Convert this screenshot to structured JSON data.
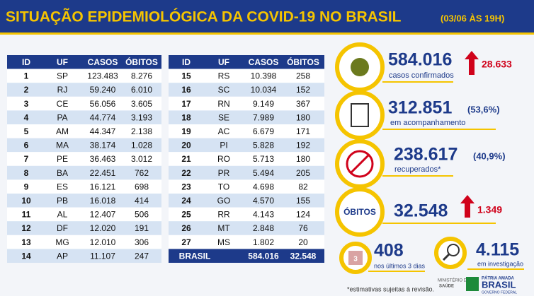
{
  "header": {
    "title": "SITUAÇÃO EPIDEMIOLÓGICA DA COVID-19 NO BRASIL",
    "date": "(03/06 ÀS 19H)"
  },
  "table_left": {
    "columns": [
      "ID",
      "UF",
      "CASOS",
      "ÓBITOS"
    ],
    "rows": [
      [
        "1",
        "SP",
        "123.483",
        "8.276"
      ],
      [
        "2",
        "RJ",
        "59.240",
        "6.010"
      ],
      [
        "3",
        "CE",
        "56.056",
        "3.605"
      ],
      [
        "4",
        "PA",
        "44.774",
        "3.193"
      ],
      [
        "5",
        "AM",
        "44.347",
        "2.138"
      ],
      [
        "6",
        "MA",
        "38.174",
        "1.028"
      ],
      [
        "7",
        "PE",
        "36.463",
        "3.012"
      ],
      [
        "8",
        "BA",
        "22.451",
        "762"
      ],
      [
        "9",
        "ES",
        "16.121",
        "698"
      ],
      [
        "10",
        "PB",
        "16.018",
        "414"
      ],
      [
        "11",
        "AL",
        "12.407",
        "506"
      ],
      [
        "12",
        "DF",
        "12.020",
        "191"
      ],
      [
        "13",
        "MG",
        "12.010",
        "306"
      ],
      [
        "14",
        "AP",
        "11.107",
        "247"
      ]
    ]
  },
  "table_right": {
    "columns": [
      "ID",
      "UF",
      "CASOS",
      "ÓBITOS"
    ],
    "rows": [
      [
        "15",
        "RS",
        "10.398",
        "258"
      ],
      [
        "16",
        "SC",
        "10.034",
        "152"
      ],
      [
        "17",
        "RN",
        "9.149",
        "367"
      ],
      [
        "18",
        "SE",
        "7.989",
        "180"
      ],
      [
        "19",
        "AC",
        "6.679",
        "171"
      ],
      [
        "20",
        "PI",
        "5.828",
        "192"
      ],
      [
        "21",
        "RO",
        "5.713",
        "180"
      ],
      [
        "22",
        "PR",
        "5.494",
        "205"
      ],
      [
        "23",
        "TO",
        "4.698",
        "82"
      ],
      [
        "24",
        "GO",
        "4.570",
        "155"
      ],
      [
        "25",
        "RR",
        "4.143",
        "124"
      ],
      [
        "26",
        "MT",
        "2.848",
        "76"
      ],
      [
        "27",
        "MS",
        "1.802",
        "20"
      ]
    ],
    "total": [
      "BRASIL",
      "584.016",
      "32.548"
    ]
  },
  "stats": {
    "confirmed": {
      "value": "584.016",
      "change": "28.633",
      "label": "casos confirmados"
    },
    "monitoring": {
      "value": "312.851",
      "share": "(53,6%)",
      "label": "em acompanhamento"
    },
    "recovered": {
      "value": "238.617",
      "share": "(40,9%)",
      "label": "recuperados*"
    },
    "deaths": {
      "badge": "ÓBITOS",
      "value": "32.548",
      "change": "1.349"
    },
    "recent_deaths": {
      "icon_label": "3",
      "value": "408",
      "label": "nos últimos 3 dias"
    },
    "investigation": {
      "value": "4.115",
      "label": "em investigação"
    }
  },
  "footer": {
    "note": "*estimativas sujeitas à revisão.",
    "ministry_1": "MINISTÉRIO DA",
    "ministry_2": "SAÚDE",
    "brand_top": "PÁTRIA AMADA",
    "brand": "BRASIL",
    "brand_bottom": "GOVERNO FEDERAL"
  }
}
